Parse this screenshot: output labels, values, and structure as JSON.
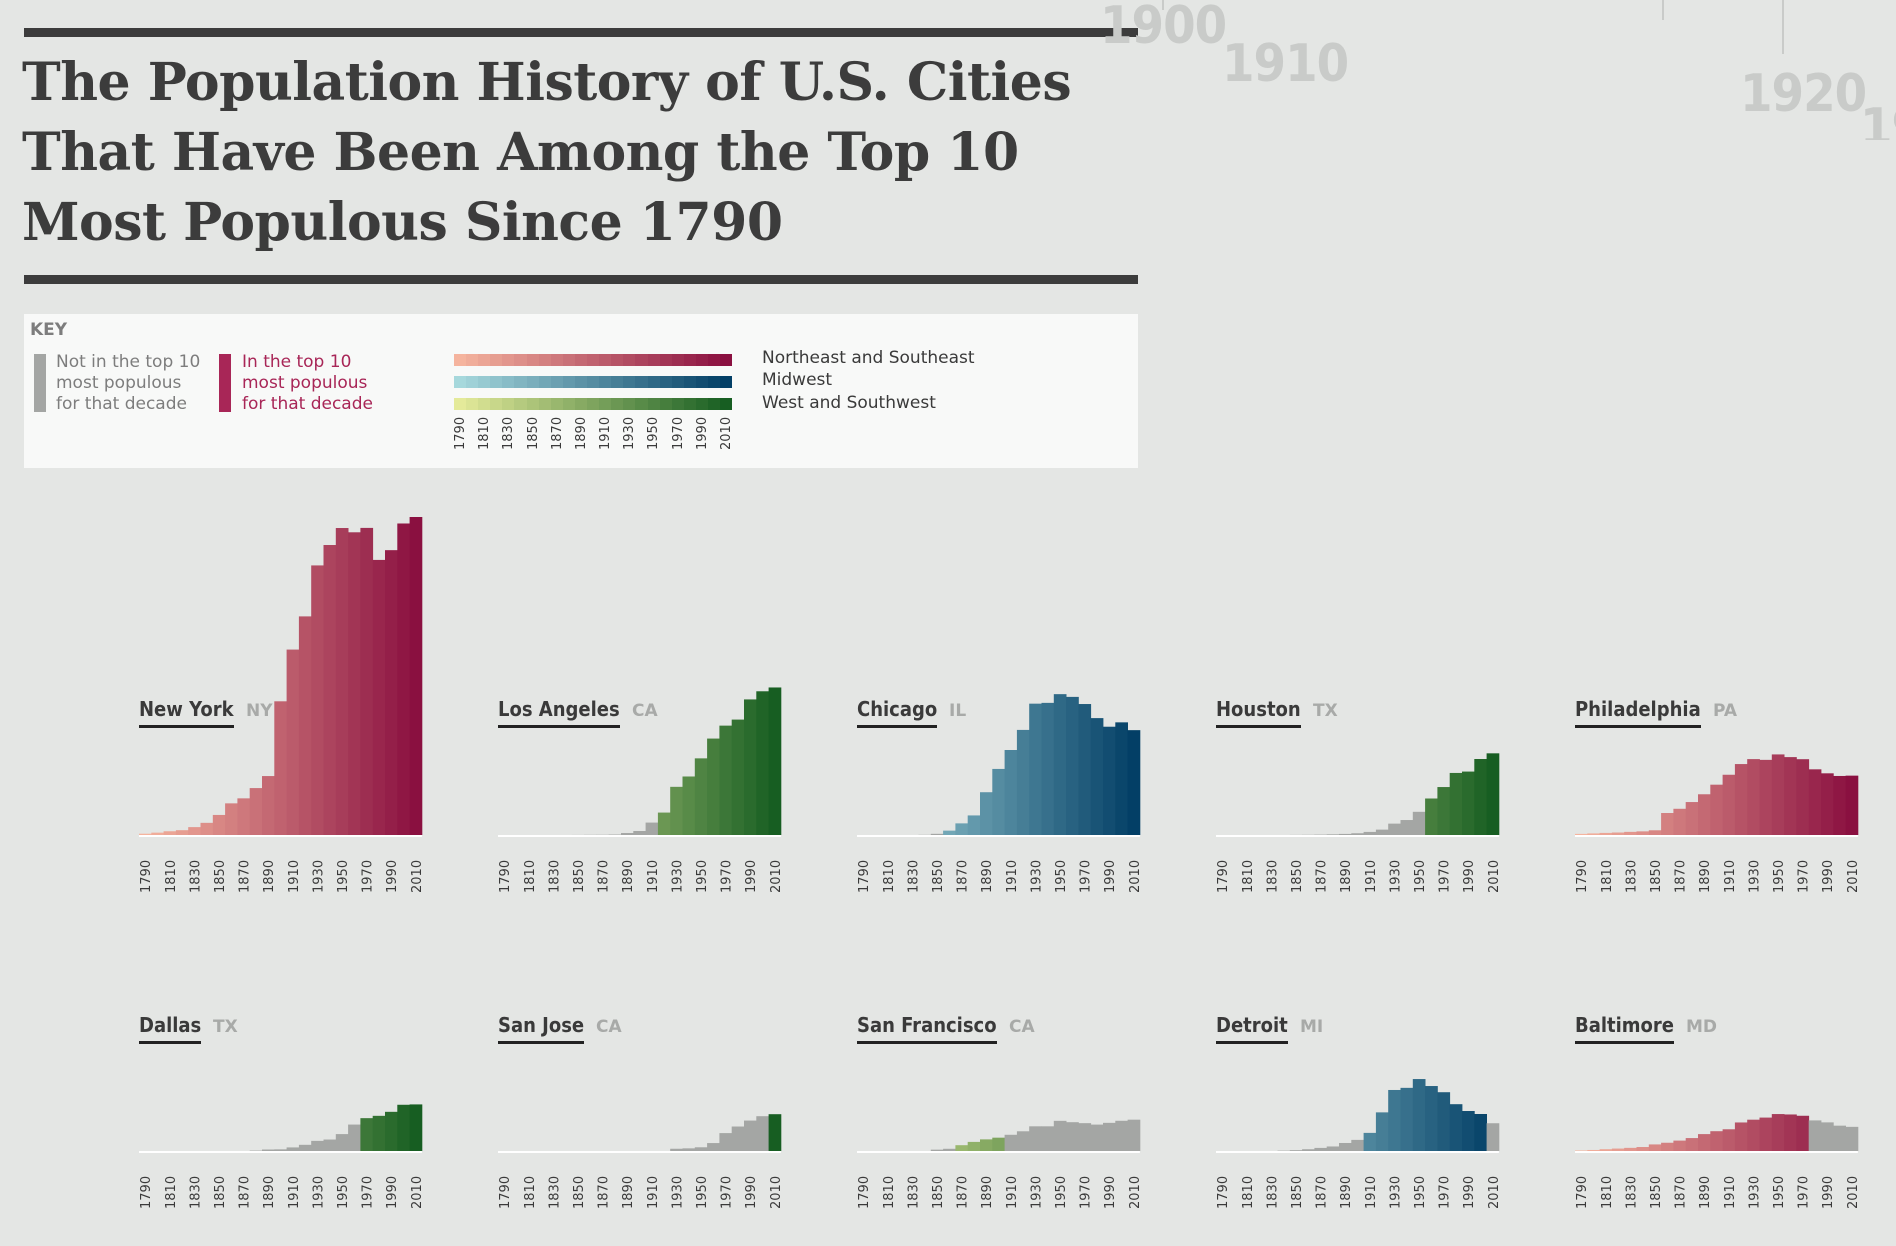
{
  "title_lines": [
    "The Population History of U.S. Cities",
    "That Have Been Among the Top 10",
    "Most Populous Since 1790"
  ],
  "timeline_years": [
    "1900",
    "1910",
    "1920"
  ],
  "key": {
    "title": "KEY",
    "not_top10_label": "Not in the top 10\nmost populous\nfor that decade",
    "top10_label": "In the top 10\nmost populous\nfor that decade",
    "regions": [
      "Northeast and Southeast",
      "Midwest",
      "West and Southwest"
    ],
    "years": [
      "1790",
      "1810",
      "1830",
      "1850",
      "1870",
      "1890",
      "1910",
      "1930",
      "1950",
      "1970",
      "1990",
      "2010"
    ]
  },
  "colors": {
    "not_top10": "#a4a6a4",
    "not_top10_text": "#7d7d7d",
    "top10": "#a82657",
    "northeast_start": "#f5b49e",
    "northeast_end": "#8a1040",
    "midwest_start": "#a6d8dc",
    "midwest_end": "#033f66",
    "west_start": "#e4ea9a",
    "west_end": "#175e22"
  },
  "chart_data": {
    "type": "bar",
    "x": [
      "1790",
      "1800",
      "1810",
      "1820",
      "1830",
      "1840",
      "1850",
      "1860",
      "1870",
      "1880",
      "1890",
      "1900",
      "1910",
      "1920",
      "1930",
      "1940",
      "1950",
      "1960",
      "1970",
      "1980",
      "1990",
      "2000",
      "2010"
    ],
    "x_tick_labels": [
      "1790",
      "1810",
      "1830",
      "1850",
      "1870",
      "1890",
      "1910",
      "1930",
      "1950",
      "1970",
      "1990",
      "2010"
    ],
    "ylim": [
      0,
      8175133
    ],
    "series": [
      {
        "name": "New York",
        "state": "NY",
        "region": "northeast",
        "values": [
          33131,
          60515,
          96373,
          123706,
          202589,
          312710,
          515547,
          813669,
          942292,
          1206299,
          1515301,
          3437202,
          4766883,
          5620048,
          6930446,
          7454995,
          7891957,
          7781984,
          7894862,
          7071639,
          7322564,
          8008278,
          8175133
        ],
        "top10": [
          1,
          1,
          1,
          1,
          1,
          1,
          1,
          1,
          1,
          1,
          1,
          1,
          1,
          1,
          1,
          1,
          1,
          1,
          1,
          1,
          1,
          1,
          1
        ]
      },
      {
        "name": "Los Angeles",
        "state": "CA",
        "region": "west",
        "values": [
          0,
          0,
          0,
          0,
          0,
          0,
          1610,
          4385,
          5728,
          11183,
          50395,
          102479,
          319198,
          576673,
          1238048,
          1504277,
          1970358,
          2479015,
          2811801,
          2966850,
          3485398,
          3694820,
          3792621
        ],
        "top10": [
          0,
          0,
          0,
          0,
          0,
          0,
          0,
          0,
          0,
          0,
          0,
          0,
          0,
          1,
          1,
          1,
          1,
          1,
          1,
          1,
          1,
          1,
          1
        ]
      },
      {
        "name": "Chicago",
        "state": "IL",
        "region": "midwest",
        "values": [
          0,
          0,
          0,
          0,
          0,
          4470,
          29963,
          112172,
          298977,
          503185,
          1099850,
          1698575,
          2185283,
          2701705,
          3376438,
          3396808,
          3620962,
          3550404,
          3366957,
          3005072,
          2783726,
          2896016,
          2695598
        ],
        "top10": [
          0,
          0,
          0,
          0,
          0,
          0,
          0,
          1,
          1,
          1,
          1,
          1,
          1,
          1,
          1,
          1,
          1,
          1,
          1,
          1,
          1,
          1,
          1
        ]
      },
      {
        "name": "Houston",
        "state": "TX",
        "region": "west",
        "values": [
          0,
          0,
          0,
          0,
          0,
          0,
          2396,
          4845,
          9382,
          16513,
          27557,
          44633,
          78800,
          138276,
          292352,
          384514,
          596163,
          938219,
          1232802,
          1595138,
          1630553,
          1953631,
          2099451
        ],
        "top10": [
          0,
          0,
          0,
          0,
          0,
          0,
          0,
          0,
          0,
          0,
          0,
          0,
          0,
          0,
          0,
          0,
          0,
          1,
          1,
          1,
          1,
          1,
          1
        ]
      },
      {
        "name": "Philadelphia",
        "state": "PA",
        "region": "northeast",
        "values": [
          28522,
          41220,
          53722,
          63802,
          80462,
          93665,
          121376,
          565529,
          674022,
          847170,
          1046964,
          1293697,
          1549008,
          1823779,
          1950961,
          1931334,
          2071605,
          2002512,
          1948609,
          1688210,
          1585577,
          1517550,
          1526006
        ],
        "top10": [
          1,
          1,
          1,
          1,
          1,
          1,
          1,
          1,
          1,
          1,
          1,
          1,
          1,
          1,
          1,
          1,
          1,
          1,
          1,
          1,
          1,
          1,
          1
        ]
      },
      {
        "name": "Dallas",
        "state": "TX",
        "region": "west",
        "values": [
          0,
          0,
          0,
          0,
          0,
          0,
          0,
          0,
          0,
          10358,
          38067,
          42638,
          92104,
          158976,
          260475,
          294734,
          434462,
          679684,
          844401,
          904078,
          1006877,
          1188580,
          1197816
        ],
        "top10": [
          0,
          0,
          0,
          0,
          0,
          0,
          0,
          0,
          0,
          0,
          0,
          0,
          0,
          0,
          0,
          0,
          0,
          0,
          1,
          1,
          1,
          1,
          1
        ]
      },
      {
        "name": "San Jose",
        "state": "CA",
        "region": "west",
        "values": [
          0,
          0,
          0,
          0,
          0,
          0,
          0,
          0,
          0,
          0,
          0,
          0,
          0,
          0,
          57651,
          68457,
          95280,
          204196,
          459913,
          629400,
          782248,
          894943,
          945942
        ],
        "top10": [
          0,
          0,
          0,
          0,
          0,
          0,
          0,
          0,
          0,
          0,
          0,
          0,
          0,
          0,
          0,
          0,
          0,
          0,
          0,
          0,
          0,
          0,
          1
        ]
      },
      {
        "name": "San Francisco",
        "state": "CA",
        "region": "west",
        "values": [
          0,
          0,
          0,
          0,
          0,
          0,
          34776,
          56802,
          149473,
          233959,
          298997,
          342782,
          416912,
          506676,
          634394,
          634536,
          775357,
          740316,
          715674,
          678974,
          723959,
          776733,
          805235
        ],
        "top10": [
          0,
          0,
          0,
          0,
          0,
          0,
          0,
          0,
          1,
          1,
          1,
          1,
          0,
          0,
          0,
          0,
          0,
          0,
          0,
          0,
          0,
          0,
          0
        ]
      },
      {
        "name": "Detroit",
        "state": "MI",
        "region": "midwest",
        "values": [
          0,
          0,
          0,
          0,
          0,
          9102,
          21019,
          45619,
          79577,
          116340,
          205876,
          285704,
          465766,
          993078,
          1568662,
          1623452,
          1849568,
          1670144,
          1511482,
          1203339,
          1027974,
          951270,
          713777
        ],
        "top10": [
          0,
          0,
          0,
          0,
          0,
          0,
          0,
          0,
          0,
          0,
          0,
          0,
          1,
          1,
          1,
          1,
          1,
          1,
          1,
          1,
          1,
          1,
          0
        ]
      },
      {
        "name": "Baltimore",
        "state": "MD",
        "region": "northeast",
        "values": [
          13503,
          26514,
          46555,
          62738,
          80620,
          102313,
          169054,
          212418,
          267354,
          332313,
          434439,
          508957,
          558485,
          733826,
          804874,
          859100,
          949708,
          939024,
          905759,
          786775,
          736014,
          651154,
          620961
        ],
        "top10": [
          1,
          1,
          1,
          1,
          1,
          1,
          1,
          1,
          1,
          1,
          1,
          1,
          1,
          1,
          1,
          1,
          1,
          1,
          1,
          0,
          0,
          0,
          0
        ]
      }
    ]
  }
}
